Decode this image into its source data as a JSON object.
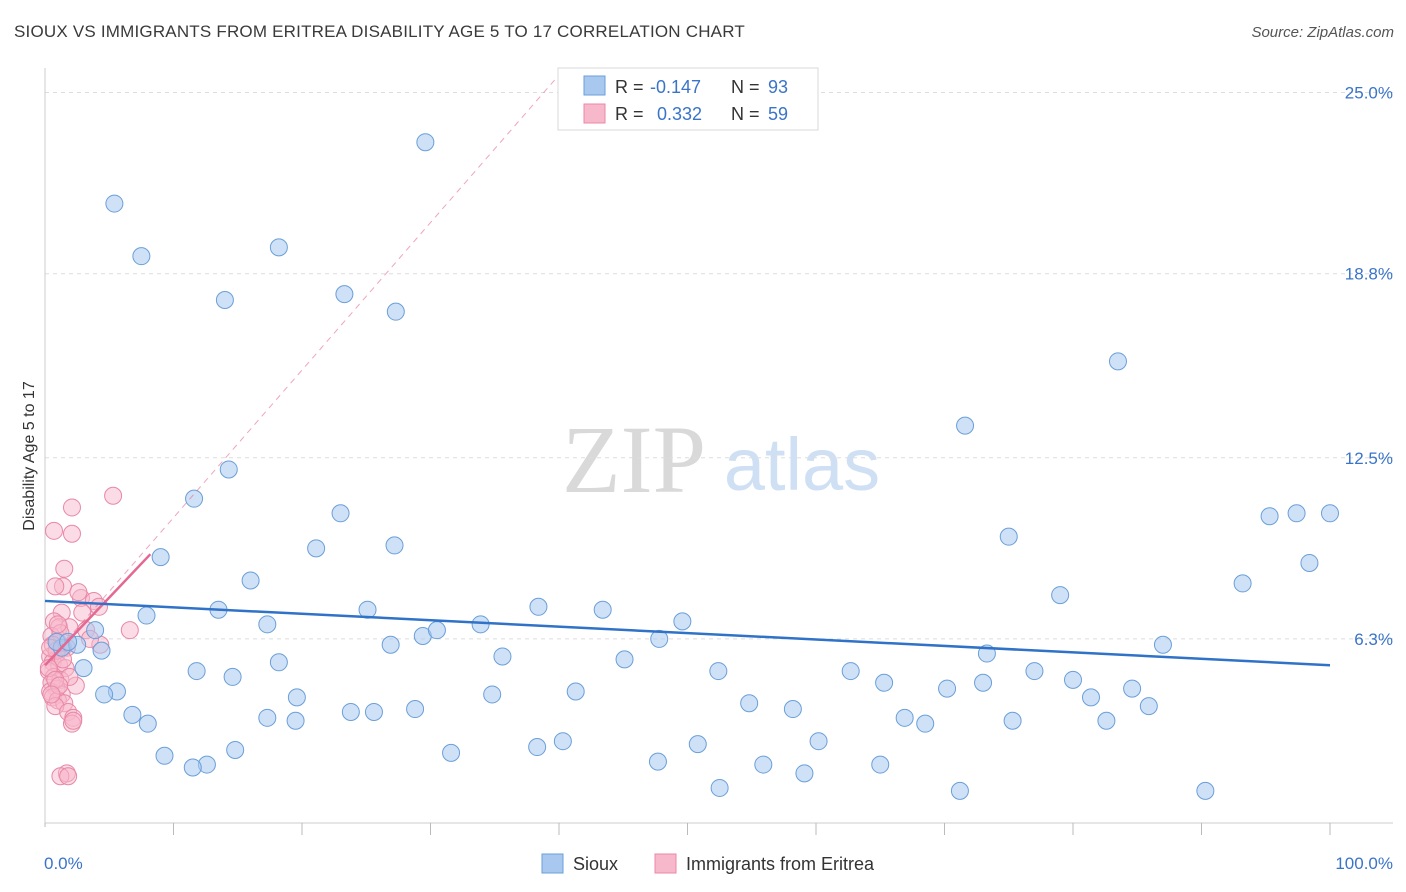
{
  "title": "SIOUX VS IMMIGRANTS FROM ERITREA DISABILITY AGE 5 TO 17 CORRELATION CHART",
  "source": "Source: ZipAtlas.com",
  "watermark": {
    "zip": "ZIP",
    "atlas": "atlas"
  },
  "chart_data": {
    "type": "scatter",
    "title": "SIOUX VS IMMIGRANTS FROM ERITREA DISABILITY AGE 5 TO 17 CORRELATION CHART",
    "xlabel": "",
    "ylabel": "Disability Age 5 to 17",
    "xlim": [
      0,
      100
    ],
    "ylim": [
      0,
      25.6
    ],
    "x_tick_labels": [
      "0.0%",
      "100.0%"
    ],
    "y_ticks": [
      6.3,
      12.5,
      18.8,
      25.0
    ],
    "y_tick_labels": [
      "6.3%",
      "12.5%",
      "18.8%",
      "25.0%"
    ],
    "grid": true,
    "legend_position": "bottom",
    "stats_box": [
      {
        "series": "Sioux",
        "r_label": "R =",
        "r_value": "-0.147",
        "n_label": "N =",
        "n_value": "93"
      },
      {
        "series": "Immigrants from Eritrea",
        "r_label": "R =",
        "r_value": "0.332",
        "n_label": "N =",
        "n_value": "59"
      }
    ],
    "colors": {
      "sioux_fill": "#a8c8f0",
      "sioux_stroke": "#6a9fd8",
      "sioux_line": "#2f72c8",
      "eritrea_fill": "#f7b8cc",
      "eritrea_stroke": "#e888a6",
      "eritrea_line": "#e46891",
      "axis_text": "#3a74c8",
      "grid": "#dddddd"
    },
    "series": [
      {
        "name": "Sioux",
        "trend": {
          "x": [
            0,
            100
          ],
          "y": [
            7.6,
            5.4
          ]
        },
        "points": [
          [
            29.6,
            23.3
          ],
          [
            5.4,
            21.2
          ],
          [
            7.5,
            19.4
          ],
          [
            18.2,
            19.7
          ],
          [
            14.0,
            17.9
          ],
          [
            23.3,
            18.1
          ],
          [
            27.3,
            17.5
          ],
          [
            83.5,
            15.8
          ],
          [
            71.6,
            13.6
          ],
          [
            14.3,
            12.1
          ],
          [
            11.6,
            11.1
          ],
          [
            9.0,
            9.1
          ],
          [
            4.4,
            5.9
          ],
          [
            3.9,
            6.6
          ],
          [
            1.3,
            6.0
          ],
          [
            0.9,
            6.2
          ],
          [
            3.0,
            5.3
          ],
          [
            5.6,
            4.5
          ],
          [
            7.9,
            7.1
          ],
          [
            11.8,
            5.2
          ],
          [
            13.5,
            7.3
          ],
          [
            14.6,
            5.0
          ],
          [
            16.0,
            8.3
          ],
          [
            17.3,
            6.8
          ],
          [
            18.2,
            5.5
          ],
          [
            19.6,
            4.3
          ],
          [
            21.1,
            9.4
          ],
          [
            23.0,
            10.6
          ],
          [
            27.2,
            9.5
          ],
          [
            25.1,
            7.3
          ],
          [
            26.9,
            6.1
          ],
          [
            29.4,
            6.4
          ],
          [
            30.5,
            6.6
          ],
          [
            33.9,
            6.8
          ],
          [
            34.8,
            4.4
          ],
          [
            35.6,
            5.7
          ],
          [
            38.4,
            7.4
          ],
          [
            41.3,
            4.5
          ],
          [
            43.4,
            7.3
          ],
          [
            45.1,
            5.6
          ],
          [
            47.8,
            6.3
          ],
          [
            49.6,
            6.9
          ],
          [
            52.4,
            5.2
          ],
          [
            54.8,
            4.1
          ],
          [
            58.2,
            3.9
          ],
          [
            62.7,
            5.2
          ],
          [
            65.3,
            4.8
          ],
          [
            66.9,
            3.6
          ],
          [
            68.5,
            3.4
          ],
          [
            70.2,
            4.6
          ],
          [
            73.0,
            4.8
          ],
          [
            73.3,
            5.8
          ],
          [
            75.3,
            3.5
          ],
          [
            77.0,
            5.2
          ],
          [
            79.0,
            7.8
          ],
          [
            81.4,
            4.3
          ],
          [
            82.6,
            3.5
          ],
          [
            84.6,
            4.6
          ],
          [
            85.9,
            4.0
          ],
          [
            87.0,
            6.1
          ],
          [
            90.3,
            1.1
          ],
          [
            93.2,
            8.2
          ],
          [
            95.3,
            10.5
          ],
          [
            97.4,
            10.6
          ],
          [
            98.4,
            8.9
          ],
          [
            100.0,
            10.6
          ],
          [
            75.0,
            9.8
          ],
          [
            80.0,
            4.9
          ],
          [
            71.2,
            1.1
          ],
          [
            65.0,
            2.0
          ],
          [
            60.2,
            2.8
          ],
          [
            59.1,
            1.7
          ],
          [
            55.9,
            2.0
          ],
          [
            52.5,
            1.2
          ],
          [
            50.8,
            2.7
          ],
          [
            47.7,
            2.1
          ],
          [
            40.3,
            2.8
          ],
          [
            38.3,
            2.6
          ],
          [
            31.6,
            2.4
          ],
          [
            28.8,
            3.9
          ],
          [
            25.6,
            3.8
          ],
          [
            23.8,
            3.8
          ],
          [
            19.5,
            3.5
          ],
          [
            17.3,
            3.6
          ],
          [
            14.8,
            2.5
          ],
          [
            12.6,
            2.0
          ],
          [
            11.5,
            1.9
          ],
          [
            9.3,
            2.3
          ],
          [
            8.0,
            3.4
          ],
          [
            6.8,
            3.7
          ],
          [
            4.6,
            4.4
          ],
          [
            2.5,
            6.1
          ],
          [
            1.8,
            6.2
          ]
        ]
      },
      {
        "name": "Immigrants from Eritrea",
        "trend": {
          "x": [
            0,
            8.2
          ],
          "y": [
            5.4,
            9.2
          ]
        },
        "dashed_extension": {
          "x": [
            0,
            40
          ],
          "y": [
            5.4,
            25.6
          ]
        },
        "points": [
          [
            5.3,
            11.2
          ],
          [
            2.1,
            10.8
          ],
          [
            0.7,
            10.0
          ],
          [
            2.1,
            9.9
          ],
          [
            1.5,
            8.7
          ],
          [
            1.4,
            8.1
          ],
          [
            0.8,
            8.1
          ],
          [
            2.8,
            7.7
          ],
          [
            3.8,
            7.6
          ],
          [
            4.2,
            7.4
          ],
          [
            1.3,
            7.2
          ],
          [
            2.9,
            7.2
          ],
          [
            0.7,
            6.9
          ],
          [
            1.1,
            6.7
          ],
          [
            1.9,
            6.7
          ],
          [
            3.2,
            6.6
          ],
          [
            6.6,
            6.6
          ],
          [
            0.5,
            6.4
          ],
          [
            1.0,
            6.2
          ],
          [
            1.4,
            6.0
          ],
          [
            0.9,
            5.8
          ],
          [
            0.4,
            5.7
          ],
          [
            0.6,
            5.5
          ],
          [
            1.1,
            5.4
          ],
          [
            1.6,
            5.3
          ],
          [
            0.3,
            5.2
          ],
          [
            0.7,
            5.0
          ],
          [
            1.2,
            4.9
          ],
          [
            0.5,
            4.8
          ],
          [
            2.4,
            4.7
          ],
          [
            0.9,
            4.6
          ],
          [
            0.4,
            4.5
          ],
          [
            1.3,
            4.4
          ],
          [
            0.6,
            4.3
          ],
          [
            1.0,
            4.2
          ],
          [
            1.5,
            4.1
          ],
          [
            0.8,
            4.0
          ],
          [
            1.8,
            3.8
          ],
          [
            2.2,
            3.6
          ],
          [
            2.1,
            3.4
          ],
          [
            4.3,
            6.1
          ],
          [
            3.5,
            6.3
          ],
          [
            1.2,
            6.5
          ],
          [
            0.6,
            6.1
          ],
          [
            1.7,
            6.0
          ],
          [
            0.9,
            5.9
          ],
          [
            1.4,
            5.6
          ],
          [
            0.3,
            5.3
          ],
          [
            1.9,
            5.0
          ],
          [
            0.8,
            4.9
          ],
          [
            1.1,
            4.7
          ],
          [
            0.5,
            4.4
          ],
          [
            1.7,
            1.7
          ],
          [
            1.2,
            1.6
          ],
          [
            1.8,
            1.6
          ],
          [
            2.2,
            3.5
          ],
          [
            1.0,
            6.8
          ],
          [
            0.4,
            6.0
          ],
          [
            2.6,
            7.9
          ]
        ]
      }
    ]
  },
  "legend": {
    "items": [
      "Sioux",
      "Immigrants from Eritrea"
    ]
  }
}
